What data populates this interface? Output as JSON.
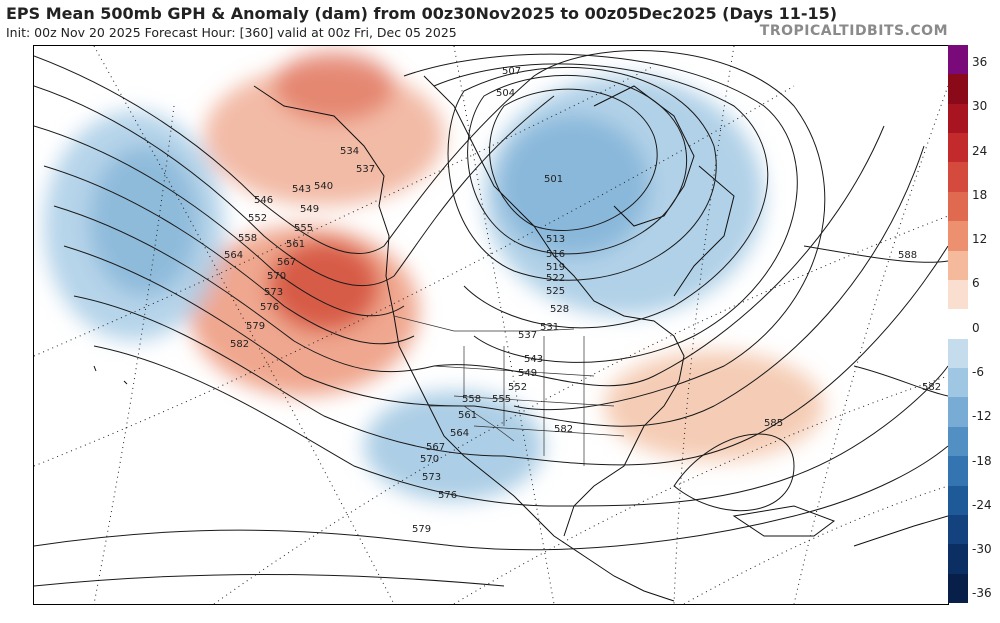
{
  "header": {
    "title": "EPS Mean 500mb GPH & Anomaly (dam) from 00z30Nov2025 to 00z05Dec2025 (Days 11-15)",
    "subtitle": "Init: 00z Nov 20 2025   Forecast Hour: [360]   valid at 00z Fri, Dec 05 2025",
    "brand": "TROPICALTIDBITS.COM"
  },
  "colorbar": {
    "labels": [
      "36",
      "30",
      "24",
      "18",
      "12",
      "6",
      "0",
      "-6",
      "-12",
      "-18",
      "-24",
      "-30",
      "-36"
    ],
    "colors": [
      "#7a0a7a",
      "#8b0a1a",
      "#a8141f",
      "#c22a2c",
      "#d44a3c",
      "#e06a50",
      "#ec9070",
      "#f5b99b",
      "#fadfd0",
      "#ffffff",
      "#c4dcec",
      "#9fc6e2",
      "#78acd4",
      "#5290c4",
      "#3474b0",
      "#1f5a98",
      "#13427e",
      "#0c2f63",
      "#081f4a"
    ]
  },
  "map": {
    "contour_labels": [
      "507",
      "504",
      "501",
      "534",
      "537",
      "540",
      "543",
      "546",
      "549",
      "552",
      "555",
      "558",
      "561",
      "564",
      "567",
      "570",
      "573",
      "576",
      "579",
      "582",
      "513",
      "516",
      "519",
      "522",
      "525",
      "528",
      "531",
      "537",
      "543",
      "549",
      "552",
      "555",
      "558",
      "561",
      "564",
      "567",
      "570",
      "573",
      "576",
      "579",
      "582",
      "585",
      "588",
      "582"
    ],
    "anomaly_areas": [
      {
        "name": "ridge-west-coast",
        "sign": "positive"
      },
      {
        "name": "ridge-alaska",
        "sign": "positive"
      },
      {
        "name": "ridge-southeast-us",
        "sign": "positive"
      },
      {
        "name": "trough-north-pacific",
        "sign": "negative"
      },
      {
        "name": "trough-hudson-bay",
        "sign": "negative"
      },
      {
        "name": "trough-mexico-southwest",
        "sign": "negative"
      }
    ]
  }
}
